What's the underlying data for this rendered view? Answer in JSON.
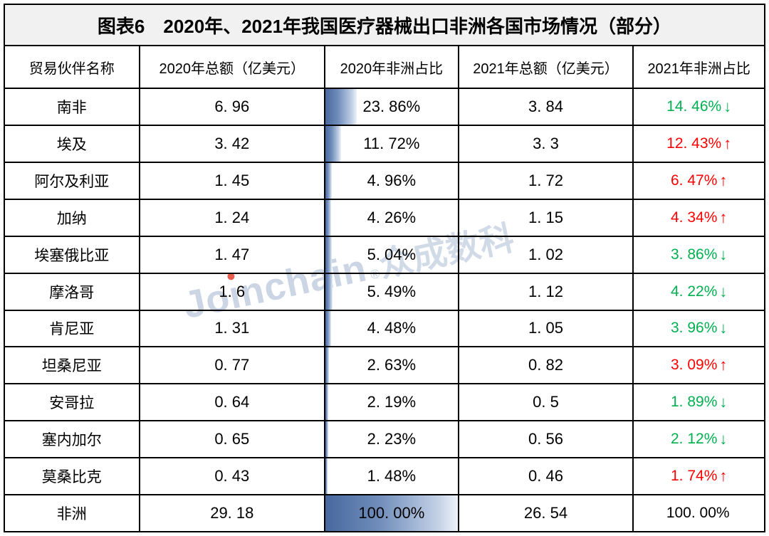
{
  "colors": {
    "increase_red": "#fe0000",
    "decrease_green": "#00b050",
    "databar_blue": "#48699e",
    "title_bg": "#f1f1f1",
    "border": "#000000",
    "watermark_blue": "rgba(130,155,190,0.42)",
    "watermark_dot_red": "#e3402e"
  },
  "trend_arrows": {
    "up": "↑",
    "down": "↓",
    "none": ""
  },
  "watermark": {
    "text": "Joinchain®众成数科",
    "latin_pre": "Jo",
    "latin_i": "ı",
    "latin_post": "nchain",
    "reg": "®",
    "cjk": "众成数科"
  },
  "chart_data": {
    "type": "table",
    "title": "图表6　2020年、2021年我国医疗器械出口非洲各国市场情况（部分）",
    "columns": [
      "贸易伙伴名称",
      "2020年总额（亿美元）",
      "2020年非洲占比",
      "2021年总额（亿美元）",
      "2021年非洲占比"
    ],
    "databar": {
      "column": "2020年非洲占比",
      "max_pct": 100,
      "style": "blue-gradient-left-aligned"
    },
    "rows": [
      {
        "name": "南非",
        "total_2020": "6. 96",
        "share_2020_label": "23. 86%",
        "share_2020_pct": 23.86,
        "total_2021": "3. 84",
        "share_2021_label": "14. 46%",
        "share_2021_pct": 14.46,
        "trend": "down"
      },
      {
        "name": "埃及",
        "total_2020": "3. 42",
        "share_2020_label": "11. 72%",
        "share_2020_pct": 11.72,
        "total_2021": "3. 3",
        "share_2021_label": "12. 43%",
        "share_2021_pct": 12.43,
        "trend": "up"
      },
      {
        "name": "阿尔及利亚",
        "total_2020": "1. 45",
        "share_2020_label": "4. 96%",
        "share_2020_pct": 4.96,
        "total_2021": "1. 72",
        "share_2021_label": "6. 47%",
        "share_2021_pct": 6.47,
        "trend": "up"
      },
      {
        "name": "加纳",
        "total_2020": "1. 24",
        "share_2020_label": "4. 26%",
        "share_2020_pct": 4.26,
        "total_2021": "1. 15",
        "share_2021_label": "4. 34%",
        "share_2021_pct": 4.34,
        "trend": "up"
      },
      {
        "name": "埃塞俄比亚",
        "total_2020": "1. 47",
        "share_2020_label": "5. 04%",
        "share_2020_pct": 5.04,
        "total_2021": "1. 02",
        "share_2021_label": "3. 86%",
        "share_2021_pct": 3.86,
        "trend": "down"
      },
      {
        "name": "摩洛哥",
        "total_2020": "1. 6",
        "share_2020_label": "5. 49%",
        "share_2020_pct": 5.49,
        "total_2021": "1. 12",
        "share_2021_label": "4. 22%",
        "share_2021_pct": 4.22,
        "trend": "down"
      },
      {
        "name": "肯尼亚",
        "total_2020": "1. 31",
        "share_2020_label": "4. 48%",
        "share_2020_pct": 4.48,
        "total_2021": "1. 05",
        "share_2021_label": "3. 96%",
        "share_2021_pct": 3.96,
        "trend": "down"
      },
      {
        "name": "坦桑尼亚",
        "total_2020": "0. 77",
        "share_2020_label": "2. 63%",
        "share_2020_pct": 2.63,
        "total_2021": "0. 82",
        "share_2021_label": "3. 09%",
        "share_2021_pct": 3.09,
        "trend": "up"
      },
      {
        "name": "安哥拉",
        "total_2020": "0. 64",
        "share_2020_label": "2. 19%",
        "share_2020_pct": 2.19,
        "total_2021": "0. 5",
        "share_2021_label": "1. 89%",
        "share_2021_pct": 1.89,
        "trend": "down"
      },
      {
        "name": "塞内加尔",
        "total_2020": "0. 65",
        "share_2020_label": "2. 23%",
        "share_2020_pct": 2.23,
        "total_2021": "0. 56",
        "share_2021_label": "2. 12%",
        "share_2021_pct": 2.12,
        "trend": "down"
      },
      {
        "name": "莫桑比克",
        "total_2020": "0. 43",
        "share_2020_label": "1. 48%",
        "share_2020_pct": 1.48,
        "total_2021": "0. 46",
        "share_2021_label": "1. 74%",
        "share_2021_pct": 1.74,
        "trend": "up"
      },
      {
        "name": "非洲",
        "total_2020": "29. 18",
        "share_2020_label": "100. 00%",
        "share_2020_pct": 100.0,
        "total_2021": "26. 54",
        "share_2021_label": "100. 00%",
        "share_2021_pct": 100.0,
        "trend": "none"
      }
    ]
  }
}
